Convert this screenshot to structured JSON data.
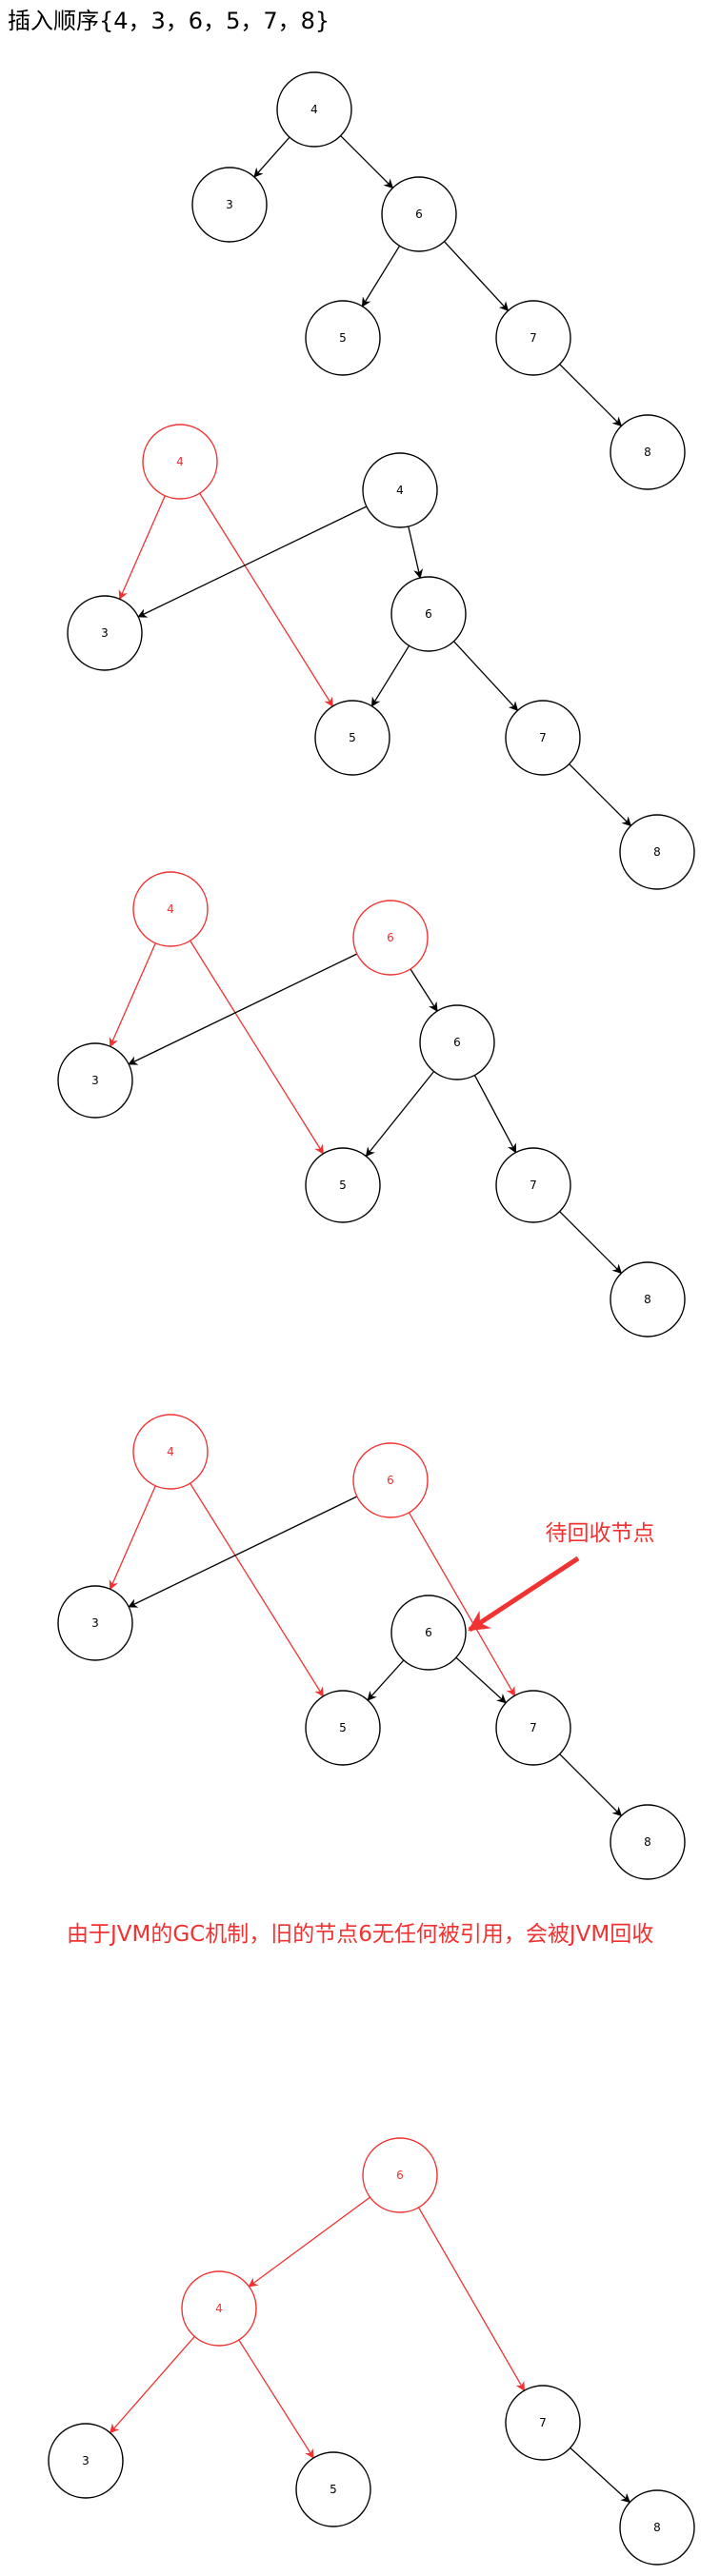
{
  "title": "插入顺序{4，3，6，5，7，8}",
  "colors": {
    "black": "#000000",
    "red": "#f03232"
  },
  "diagrams": [
    {
      "nodes": [
        {
          "id": "a4",
          "label": "4",
          "color": "black"
        },
        {
          "id": "a3",
          "label": "3",
          "color": "black"
        },
        {
          "id": "a6",
          "label": "6",
          "color": "black"
        },
        {
          "id": "a5",
          "label": "5",
          "color": "black"
        },
        {
          "id": "a7",
          "label": "7",
          "color": "black"
        },
        {
          "id": "a8",
          "label": "8",
          "color": "black"
        }
      ],
      "edges": [
        {
          "from": "a4",
          "to": "a3",
          "color": "black"
        },
        {
          "from": "a4",
          "to": "a6",
          "color": "black"
        },
        {
          "from": "a6",
          "to": "a5",
          "color": "black"
        },
        {
          "from": "a6",
          "to": "a7",
          "color": "black"
        },
        {
          "from": "a7",
          "to": "a8",
          "color": "black"
        }
      ]
    },
    {
      "nodes": [
        {
          "id": "b4old",
          "label": "4",
          "color": "red"
        },
        {
          "id": "b4",
          "label": "4",
          "color": "black"
        },
        {
          "id": "b3",
          "label": "3",
          "color": "black"
        },
        {
          "id": "b6",
          "label": "6",
          "color": "black"
        },
        {
          "id": "b5",
          "label": "5",
          "color": "black"
        },
        {
          "id": "b7",
          "label": "7",
          "color": "black"
        },
        {
          "id": "b8",
          "label": "8",
          "color": "black"
        }
      ],
      "edges": [
        {
          "from": "b4old",
          "to": "b3",
          "color": "red"
        },
        {
          "from": "b4old",
          "to": "b5",
          "color": "red"
        },
        {
          "from": "b4",
          "to": "b3",
          "color": "black"
        },
        {
          "from": "b4",
          "to": "b6",
          "color": "black"
        },
        {
          "from": "b6",
          "to": "b5",
          "color": "black"
        },
        {
          "from": "b6",
          "to": "b7",
          "color": "black"
        },
        {
          "from": "b7",
          "to": "b8",
          "color": "black"
        }
      ]
    },
    {
      "nodes": [
        {
          "id": "c4",
          "label": "4",
          "color": "red"
        },
        {
          "id": "c6top",
          "label": "6",
          "color": "red"
        },
        {
          "id": "c3",
          "label": "3",
          "color": "black"
        },
        {
          "id": "c6",
          "label": "6",
          "color": "black"
        },
        {
          "id": "c5",
          "label": "5",
          "color": "black"
        },
        {
          "id": "c7",
          "label": "7",
          "color": "black"
        },
        {
          "id": "c8",
          "label": "8",
          "color": "black"
        }
      ],
      "edges": [
        {
          "from": "c4",
          "to": "c3",
          "color": "red"
        },
        {
          "from": "c4",
          "to": "c5",
          "color": "red"
        },
        {
          "from": "c6top",
          "to": "c3",
          "color": "black"
        },
        {
          "from": "c6top",
          "to": "c6",
          "color": "black"
        },
        {
          "from": "c6",
          "to": "c5",
          "color": "black"
        },
        {
          "from": "c6",
          "to": "c7",
          "color": "black"
        },
        {
          "from": "c7",
          "to": "c8",
          "color": "black"
        }
      ]
    },
    {
      "nodes": [
        {
          "id": "d4",
          "label": "4",
          "color": "red"
        },
        {
          "id": "d6top",
          "label": "6",
          "color": "red"
        },
        {
          "id": "d3",
          "label": "3",
          "color": "black"
        },
        {
          "id": "d6",
          "label": "6",
          "color": "black"
        },
        {
          "id": "d5",
          "label": "5",
          "color": "black"
        },
        {
          "id": "d7",
          "label": "7",
          "color": "black"
        },
        {
          "id": "d8",
          "label": "8",
          "color": "black"
        }
      ],
      "edges": [
        {
          "from": "d4",
          "to": "d3",
          "color": "red"
        },
        {
          "from": "d4",
          "to": "d5",
          "color": "red"
        },
        {
          "from": "d6top",
          "to": "d3",
          "color": "black"
        },
        {
          "from": "d6top",
          "to": "d7",
          "color": "red"
        },
        {
          "from": "d6",
          "to": "d5",
          "color": "black"
        },
        {
          "from": "d6",
          "to": "d7",
          "color": "black"
        },
        {
          "from": "d7",
          "to": "d8",
          "color": "black"
        }
      ],
      "annotation": {
        "text": "待回收节点",
        "target": "d6",
        "color": "red"
      }
    },
    {
      "nodes": [
        {
          "id": "e6",
          "label": "6",
          "color": "red"
        },
        {
          "id": "e4",
          "label": "4",
          "color": "red"
        },
        {
          "id": "e3",
          "label": "3",
          "color": "black"
        },
        {
          "id": "e5",
          "label": "5",
          "color": "black"
        },
        {
          "id": "e7",
          "label": "7",
          "color": "black"
        },
        {
          "id": "e8",
          "label": "8",
          "color": "black"
        }
      ],
      "edges": [
        {
          "from": "e6",
          "to": "e4",
          "color": "red"
        },
        {
          "from": "e6",
          "to": "e7",
          "color": "red"
        },
        {
          "from": "e4",
          "to": "e3",
          "color": "red"
        },
        {
          "from": "e4",
          "to": "e5",
          "color": "red"
        },
        {
          "from": "e7",
          "to": "e8",
          "color": "black"
        }
      ]
    }
  ],
  "note": "由于JVM的GC机制，旧的节点6无任何被引用，会被JVM回收"
}
